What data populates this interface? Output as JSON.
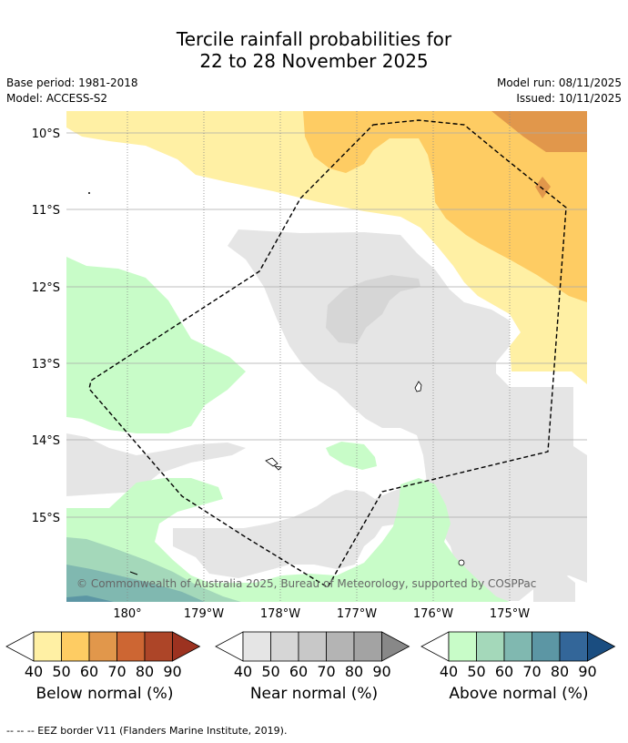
{
  "title": {
    "line1": "Tercile rainfall probabilities for",
    "line2": "22 to 28 November 2025"
  },
  "meta_left": {
    "base_period": "Base period: 1981-2018",
    "model": "Model: ACCESS-S2"
  },
  "meta_right": {
    "model_run": "Model run: 08/11/2025",
    "issued": "Issued: 10/11/2025"
  },
  "map": {
    "lat_labels": [
      "10°S",
      "11°S",
      "12°S",
      "13°S",
      "14°S",
      "15°S"
    ],
    "lon_labels": [
      "180°",
      "179°W",
      "178°W",
      "177°W",
      "176°W",
      "175°W"
    ],
    "attribution": "© Commonwealth of Australia 2025, Bureau of Meteorology, supported by COSPPac"
  },
  "colorbars": [
    {
      "label": "Below normal (%)",
      "ticks": [
        "40",
        "50",
        "60",
        "70",
        "80",
        "90"
      ],
      "colors": [
        "#fff0a4",
        "#fecc63",
        "#e1974b",
        "#cd6633",
        "#ad4528",
        "#9c3220"
      ]
    },
    {
      "label": "Near normal (%)",
      "ticks": [
        "40",
        "50",
        "60",
        "70",
        "80",
        "90"
      ],
      "colors": [
        "#e5e5e5",
        "#d6d6d6",
        "#c8c8c8",
        "#b4b4b4",
        "#a3a3a3",
        "#888888"
      ]
    },
    {
      "label": "Above normal (%)",
      "ticks": [
        "40",
        "50",
        "60",
        "70",
        "80",
        "90"
      ],
      "colors": [
        "#c8fcc8",
        "#a4d8ba",
        "#80b8b0",
        "#5c96a4",
        "#336699",
        "#1a4d80"
      ]
    }
  ],
  "footer": "--  --  -- EEZ border V11 (Flanders Marine Institute, 2019)."
}
